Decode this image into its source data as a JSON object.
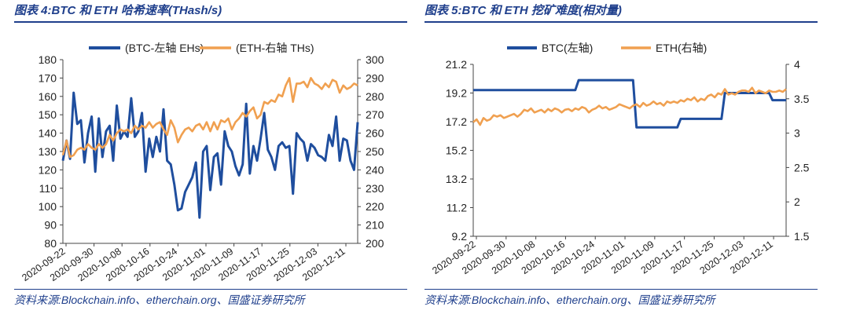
{
  "panels": {
    "left": {
      "title": "图表 4:BTC 和 ETH 哈希速率(THash/s)",
      "source": "资料来源:Blockchain.info、etherchain.org、国盛证券研究所"
    },
    "right": {
      "title": "图表 5:BTC 和 ETH 挖矿难度(相对量)",
      "source": "资料来源:Blockchain.info、etherchain.org、国盛证券研究所"
    }
  },
  "chart_data": [
    {
      "type": "line",
      "title": "BTC 和 ETH 哈希速率(THash/s)",
      "legend_position": "top",
      "x_tick_labels": [
        "2020-09-22",
        "2020-09-30",
        "2020-10-08",
        "2020-10-16",
        "2020-10-24",
        "2020-11-01",
        "2020-11-09",
        "2020-11-17",
        "2020-11-25",
        "2020-12-03",
        "2020-12-11"
      ],
      "y_left": {
        "min": 80,
        "max": 180,
        "step": 10,
        "ticks": [
          "80",
          "90",
          "100",
          "110",
          "120",
          "130",
          "140",
          "150",
          "160",
          "170",
          "180"
        ]
      },
      "y_right": {
        "min": 200,
        "max": 300,
        "step": 10,
        "ticks": [
          "200",
          "210",
          "220",
          "230",
          "240",
          "250",
          "260",
          "270",
          "280",
          "290",
          "300"
        ]
      },
      "series": [
        {
          "name": "(BTC-左轴 EHs)",
          "axis": "left",
          "color": "#1f4e9e",
          "values": [
            125,
            136,
            126,
            162,
            145,
            147,
            124,
            140,
            149,
            119,
            148,
            127,
            141,
            144,
            125,
            155,
            137,
            141,
            138,
            159,
            138,
            141,
            151,
            119,
            137,
            127,
            138,
            130,
            153,
            125,
            123,
            112,
            98,
            99,
            108,
            112,
            116,
            124,
            94,
            130,
            133,
            109,
            127,
            129,
            112,
            141,
            133,
            130,
            122,
            117,
            123,
            156,
            118,
            133,
            125,
            137,
            151,
            131,
            127,
            120,
            133,
            135,
            132,
            133,
            107,
            140,
            137,
            135,
            125,
            134,
            132,
            128,
            127,
            125,
            139,
            133,
            149,
            125,
            137,
            136,
            125,
            120,
            146
          ]
        },
        {
          "name": "(ETH-右轴 THs)",
          "axis": "right",
          "color": "#f0a050",
          "values": [
            248,
            256,
            247,
            248,
            251,
            252,
            251,
            254,
            252,
            251,
            254,
            252,
            254,
            259,
            256,
            260,
            262,
            261,
            262,
            260,
            264,
            262,
            264,
            263,
            266,
            263,
            265,
            266,
            262,
            259,
            267,
            263,
            255,
            259,
            262,
            263,
            261,
            264,
            265,
            262,
            266,
            261,
            266,
            262,
            267,
            266,
            268,
            262,
            266,
            268,
            271,
            269,
            272,
            274,
            268,
            270,
            277,
            276,
            278,
            277,
            281,
            280,
            286,
            290,
            277,
            287,
            287,
            288,
            285,
            290,
            287,
            286,
            284,
            287,
            285,
            289,
            288,
            282,
            286,
            284,
            285,
            287,
            286
          ]
        }
      ]
    },
    {
      "type": "line",
      "title": "BTC 和 ETH 挖矿难度(相对量)",
      "legend_position": "top",
      "x_tick_labels": [
        "2020-09-22",
        "2020-09-30",
        "2020-10-08",
        "2020-10-16",
        "2020-10-24",
        "2020-11-01",
        "2020-11-09",
        "2020-11-17",
        "2020-11-25",
        "2020-12-03",
        "2020-12-11"
      ],
      "y_left": {
        "min": 9.2,
        "max": 21.2,
        "step": 2,
        "ticks": [
          "9.2",
          "11.2",
          "13.2",
          "15.2",
          "17.2",
          "19.2",
          "21.2"
        ]
      },
      "y_right": {
        "min": 1.5,
        "max": 4,
        "step": 0.5,
        "ticks": [
          "1.5",
          "2",
          "2.5",
          "3",
          "3.5",
          "4"
        ]
      },
      "series": [
        {
          "name": "BTC(左轴)",
          "axis": "left",
          "color": "#1f4e9e",
          "values": [
            19.4,
            19.4,
            19.4,
            19.4,
            19.4,
            19.4,
            19.4,
            19.4,
            19.4,
            19.4,
            19.4,
            19.4,
            19.4,
            19.4,
            19.4,
            19.4,
            19.4,
            19.4,
            19.4,
            19.4,
            19.4,
            19.4,
            19.4,
            19.4,
            19.4,
            19.4,
            19.4,
            19.4,
            19.4,
            19.4,
            19.4,
            20.1,
            20.1,
            20.1,
            20.1,
            20.1,
            20.1,
            20.1,
            20.1,
            20.1,
            20.1,
            20.1,
            20.1,
            20.1,
            20.1,
            20.1,
            20.1,
            20.1,
            16.8,
            16.8,
            16.8,
            16.8,
            16.8,
            16.8,
            16.8,
            16.8,
            16.8,
            16.8,
            16.8,
            16.8,
            16.8,
            17.4,
            17.4,
            17.4,
            17.4,
            17.4,
            17.4,
            17.4,
            17.4,
            17.4,
            17.4,
            17.4,
            17.4,
            17.4,
            19.2,
            19.2,
            19.2,
            19.2,
            19.2,
            19.2,
            19.2,
            19.2,
            19.2,
            19.2,
            19.2,
            19.2,
            19.2,
            19.2,
            18.7,
            18.7,
            18.7,
            18.7,
            18.7
          ]
        },
        {
          "name": "ETH(右轴)",
          "axis": "right",
          "color": "#f0a050",
          "values": [
            3.16,
            3.2,
            3.12,
            3.22,
            3.18,
            3.2,
            3.26,
            3.24,
            3.26,
            3.22,
            3.24,
            3.26,
            3.28,
            3.24,
            3.28,
            3.34,
            3.32,
            3.36,
            3.3,
            3.32,
            3.34,
            3.3,
            3.35,
            3.32,
            3.36,
            3.34,
            3.3,
            3.34,
            3.35,
            3.32,
            3.36,
            3.34,
            3.38,
            3.36,
            3.3,
            3.34,
            3.36,
            3.4,
            3.36,
            3.38,
            3.34,
            3.36,
            3.38,
            3.42,
            3.4,
            3.38,
            3.36,
            3.4,
            3.42,
            3.38,
            3.44,
            3.4,
            3.42,
            3.46,
            3.42,
            3.44,
            3.4,
            3.46,
            3.44,
            3.46,
            3.44,
            3.48,
            3.46,
            3.5,
            3.48,
            3.52,
            3.46,
            3.5,
            3.48,
            3.54,
            3.56,
            3.52,
            3.58,
            3.56,
            3.64,
            3.56,
            3.58,
            3.56,
            3.6,
            3.62,
            3.62,
            3.6,
            3.66,
            3.58,
            3.62,
            3.6,
            3.58,
            3.62,
            3.6,
            3.6,
            3.62,
            3.6,
            3.64
          ]
        }
      ]
    }
  ]
}
